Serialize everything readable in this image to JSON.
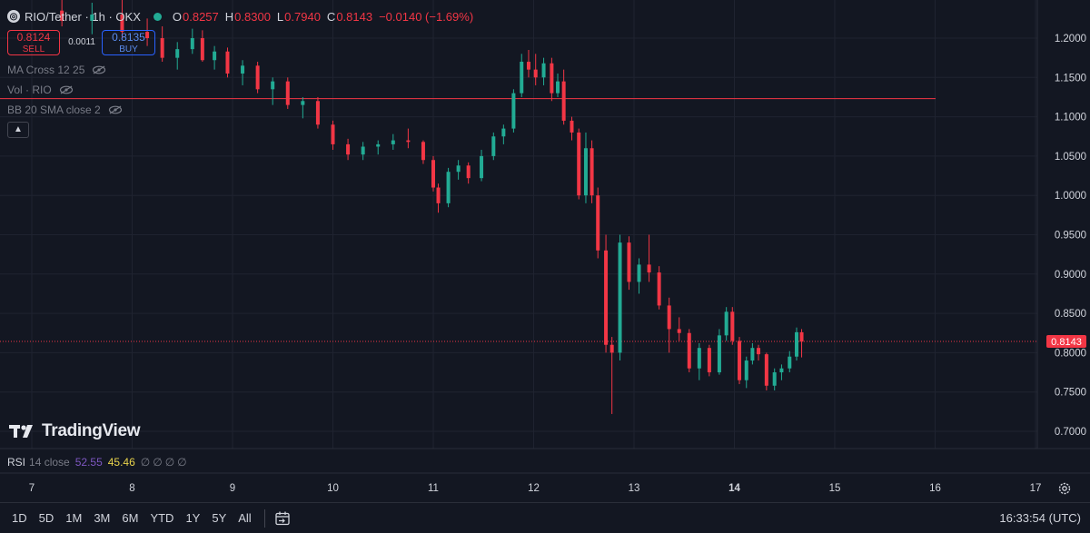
{
  "header": {
    "symbol": "RIO/Tether · 1h · OKX",
    "ohlc": [
      {
        "key": "O",
        "value": "0.8257"
      },
      {
        "key": "H",
        "value": "0.8300"
      },
      {
        "key": "L",
        "value": "0.7940"
      },
      {
        "key": "C",
        "value": "0.8143"
      }
    ],
    "change": "−0.0140 (−1.69%)"
  },
  "trade": {
    "sell_price": "0.8124",
    "sell_label": "SELL",
    "spread": "0.0011",
    "buy_price": "0.8135",
    "buy_label": "BUY"
  },
  "indicators": [
    "MA Cross 12 25",
    "Vol · RIO",
    "BB 20 SMA close 2"
  ],
  "icons": {
    "eye": "eye-crossed-icon",
    "collapse": "chevron-up-icon",
    "settings": "gear-icon",
    "calendar": "goto-date-icon"
  },
  "watermark": "TradingView",
  "rsi": {
    "name": "RSI",
    "params": "14 close",
    "value1": "52.55",
    "value2": "45.46",
    "nan": [
      "∅",
      "∅",
      "∅",
      "∅"
    ]
  },
  "range_buttons": [
    "1D",
    "5D",
    "1M",
    "3M",
    "6M",
    "YTD",
    "1Y",
    "5Y",
    "All"
  ],
  "clock": "16:33:54 (UTC)",
  "colors": {
    "up": "#22ab94",
    "down": "#f23645",
    "background": "#131722",
    "grid": "#1f2330"
  },
  "chart_data": {
    "type": "candlestick",
    "y_ticks": [
      "1.2000",
      "1.1500",
      "1.1000",
      "1.0500",
      "1.0000",
      "0.9500",
      "0.9000",
      "0.8500",
      "0.8000",
      "0.7500",
      "0.7000"
    ],
    "ylim": [
      0.7,
      1.2
    ],
    "x_ticks": [
      "7",
      "8",
      "9",
      "10",
      "11",
      "12",
      "13",
      "14",
      "15",
      "16",
      "17"
    ],
    "x_ticks_bold": [
      "14"
    ],
    "current_price": "0.8143",
    "horizontal_line": 1.123,
    "candles": [
      {
        "x": 7.3,
        "o": 1.235,
        "h": 1.255,
        "l": 1.215,
        "c": 1.222
      },
      {
        "x": 7.6,
        "o": 1.222,
        "h": 1.245,
        "l": 1.205,
        "c": 1.23
      },
      {
        "x": 7.9,
        "o": 1.23,
        "h": 1.25,
        "l": 1.2,
        "c": 1.208
      },
      {
        "x": 8.15,
        "o": 1.208,
        "h": 1.225,
        "l": 1.19,
        "c": 1.2
      },
      {
        "x": 8.3,
        "o": 1.2,
        "h": 1.215,
        "l": 1.17,
        "c": 1.175
      },
      {
        "x": 8.45,
        "o": 1.175,
        "h": 1.195,
        "l": 1.16,
        "c": 1.186
      },
      {
        "x": 8.6,
        "o": 1.186,
        "h": 1.212,
        "l": 1.18,
        "c": 1.2
      },
      {
        "x": 8.7,
        "o": 1.2,
        "h": 1.21,
        "l": 1.17,
        "c": 1.172
      },
      {
        "x": 8.82,
        "o": 1.172,
        "h": 1.19,
        "l": 1.16,
        "c": 1.183
      },
      {
        "x": 8.95,
        "o": 1.183,
        "h": 1.188,
        "l": 1.15,
        "c": 1.155
      },
      {
        "x": 9.1,
        "o": 1.155,
        "h": 1.172,
        "l": 1.14,
        "c": 1.165
      },
      {
        "x": 9.25,
        "o": 1.165,
        "h": 1.17,
        "l": 1.13,
        "c": 1.135
      },
      {
        "x": 9.4,
        "o": 1.135,
        "h": 1.15,
        "l": 1.115,
        "c": 1.145
      },
      {
        "x": 9.55,
        "o": 1.145,
        "h": 1.15,
        "l": 1.11,
        "c": 1.115
      },
      {
        "x": 9.7,
        "o": 1.115,
        "h": 1.125,
        "l": 1.098,
        "c": 1.12
      },
      {
        "x": 9.85,
        "o": 1.12,
        "h": 1.125,
        "l": 1.085,
        "c": 1.09
      },
      {
        "x": 10.0,
        "o": 1.09,
        "h": 1.095,
        "l": 1.058,
        "c": 1.065
      },
      {
        "x": 10.15,
        "o": 1.065,
        "h": 1.072,
        "l": 1.045,
        "c": 1.052
      },
      {
        "x": 10.3,
        "o": 1.052,
        "h": 1.068,
        "l": 1.045,
        "c": 1.062
      },
      {
        "x": 10.45,
        "o": 1.062,
        "h": 1.07,
        "l": 1.052,
        "c": 1.065
      },
      {
        "x": 10.6,
        "o": 1.065,
        "h": 1.078,
        "l": 1.058,
        "c": 1.07
      },
      {
        "x": 10.75,
        "o": 1.07,
        "h": 1.085,
        "l": 1.06,
        "c": 1.068
      },
      {
        "x": 10.9,
        "o": 1.068,
        "h": 1.07,
        "l": 1.04,
        "c": 1.045
      },
      {
        "x": 11.0,
        "o": 1.045,
        "h": 1.05,
        "l": 1.005,
        "c": 1.01
      },
      {
        "x": 11.05,
        "o": 1.01,
        "h": 1.015,
        "l": 0.978,
        "c": 0.99
      },
      {
        "x": 11.15,
        "o": 0.99,
        "h": 1.035,
        "l": 0.985,
        "c": 1.03
      },
      {
        "x": 11.25,
        "o": 1.03,
        "h": 1.045,
        "l": 1.02,
        "c": 1.038
      },
      {
        "x": 11.35,
        "o": 1.038,
        "h": 1.042,
        "l": 1.015,
        "c": 1.022
      },
      {
        "x": 11.48,
        "o": 1.022,
        "h": 1.058,
        "l": 1.018,
        "c": 1.05
      },
      {
        "x": 11.6,
        "o": 1.05,
        "h": 1.08,
        "l": 1.045,
        "c": 1.075
      },
      {
        "x": 11.7,
        "o": 1.075,
        "h": 1.09,
        "l": 1.065,
        "c": 1.085
      },
      {
        "x": 11.8,
        "o": 1.085,
        "h": 1.135,
        "l": 1.08,
        "c": 1.13
      },
      {
        "x": 11.88,
        "o": 1.13,
        "h": 1.18,
        "l": 1.125,
        "c": 1.17
      },
      {
        "x": 11.95,
        "o": 1.17,
        "h": 1.185,
        "l": 1.15,
        "c": 1.16
      },
      {
        "x": 12.02,
        "o": 1.16,
        "h": 1.18,
        "l": 1.14,
        "c": 1.15
      },
      {
        "x": 12.1,
        "o": 1.15,
        "h": 1.175,
        "l": 1.14,
        "c": 1.168
      },
      {
        "x": 12.18,
        "o": 1.168,
        "h": 1.175,
        "l": 1.12,
        "c": 1.13
      },
      {
        "x": 12.24,
        "o": 1.13,
        "h": 1.155,
        "l": 1.125,
        "c": 1.145
      },
      {
        "x": 12.3,
        "o": 1.145,
        "h": 1.16,
        "l": 1.09,
        "c": 1.095
      },
      {
        "x": 12.38,
        "o": 1.095,
        "h": 1.1,
        "l": 1.07,
        "c": 1.08
      },
      {
        "x": 12.45,
        "o": 1.08,
        "h": 1.085,
        "l": 0.995,
        "c": 1.0
      },
      {
        "x": 12.52,
        "o": 1.0,
        "h": 1.08,
        "l": 0.99,
        "c": 1.06
      },
      {
        "x": 12.58,
        "o": 1.06,
        "h": 1.07,
        "l": 0.99,
        "c": 1.0
      },
      {
        "x": 12.64,
        "o": 1.0,
        "h": 1.01,
        "l": 0.92,
        "c": 0.93
      },
      {
        "x": 12.72,
        "o": 0.93,
        "h": 0.95,
        "l": 0.8,
        "c": 0.81
      },
      {
        "x": 12.78,
        "o": 0.81,
        "h": 0.82,
        "l": 0.722,
        "c": 0.8
      },
      {
        "x": 12.86,
        "o": 0.8,
        "h": 0.95,
        "l": 0.79,
        "c": 0.94
      },
      {
        "x": 12.95,
        "o": 0.94,
        "h": 0.948,
        "l": 0.88,
        "c": 0.89
      },
      {
        "x": 13.05,
        "o": 0.89,
        "h": 0.92,
        "l": 0.875,
        "c": 0.912
      },
      {
        "x": 13.15,
        "o": 0.912,
        "h": 0.95,
        "l": 0.89,
        "c": 0.902
      },
      {
        "x": 13.25,
        "o": 0.902,
        "h": 0.91,
        "l": 0.855,
        "c": 0.86
      },
      {
        "x": 13.35,
        "o": 0.86,
        "h": 0.87,
        "l": 0.8,
        "c": 0.83
      },
      {
        "x": 13.45,
        "o": 0.83,
        "h": 0.845,
        "l": 0.815,
        "c": 0.825
      },
      {
        "x": 13.55,
        "o": 0.825,
        "h": 0.83,
        "l": 0.775,
        "c": 0.78
      },
      {
        "x": 13.65,
        "o": 0.78,
        "h": 0.812,
        "l": 0.765,
        "c": 0.806
      },
      {
        "x": 13.75,
        "o": 0.806,
        "h": 0.81,
        "l": 0.77,
        "c": 0.775
      },
      {
        "x": 13.85,
        "o": 0.775,
        "h": 0.83,
        "l": 0.772,
        "c": 0.822
      },
      {
        "x": 13.92,
        "o": 0.822,
        "h": 0.858,
        "l": 0.815,
        "c": 0.852
      },
      {
        "x": 13.98,
        "o": 0.852,
        "h": 0.858,
        "l": 0.81,
        "c": 0.815
      },
      {
        "x": 14.05,
        "o": 0.815,
        "h": 0.82,
        "l": 0.76,
        "c": 0.765
      },
      {
        "x": 14.12,
        "o": 0.765,
        "h": 0.795,
        "l": 0.755,
        "c": 0.79
      },
      {
        "x": 14.18,
        "o": 0.79,
        "h": 0.812,
        "l": 0.785,
        "c": 0.806
      },
      {
        "x": 14.24,
        "o": 0.806,
        "h": 0.81,
        "l": 0.79,
        "c": 0.798
      },
      {
        "x": 14.32,
        "o": 0.798,
        "h": 0.8,
        "l": 0.752,
        "c": 0.758
      },
      {
        "x": 14.4,
        "o": 0.758,
        "h": 0.78,
        "l": 0.752,
        "c": 0.775
      },
      {
        "x": 14.47,
        "o": 0.775,
        "h": 0.785,
        "l": 0.765,
        "c": 0.78
      },
      {
        "x": 14.55,
        "o": 0.78,
        "h": 0.802,
        "l": 0.775,
        "c": 0.795
      },
      {
        "x": 14.62,
        "o": 0.795,
        "h": 0.832,
        "l": 0.79,
        "c": 0.826
      },
      {
        "x": 14.67,
        "o": 0.826,
        "h": 0.83,
        "l": 0.794,
        "c": 0.814
      }
    ]
  }
}
